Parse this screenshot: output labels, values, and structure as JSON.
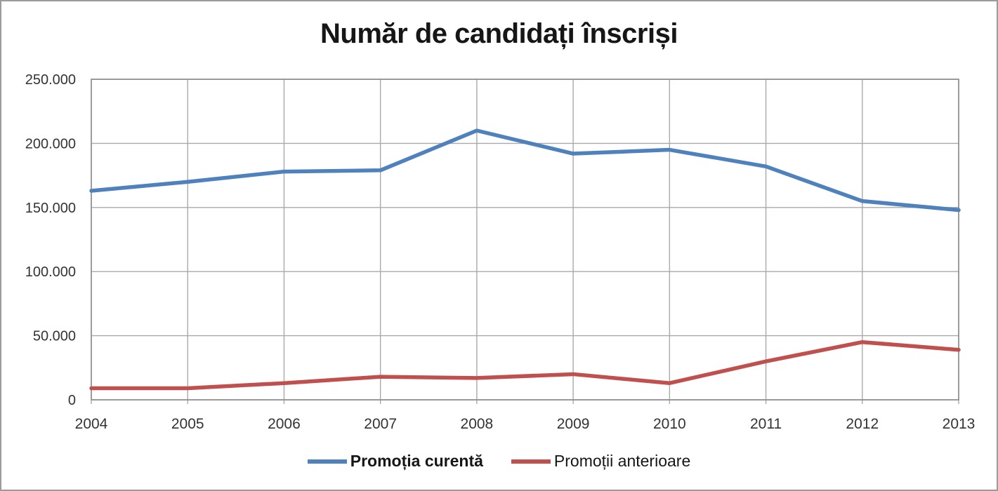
{
  "title": "Număr de candidați înscriși",
  "legend": {
    "items": [
      {
        "label": "Promoția curentă"
      },
      {
        "label": "Promoții anterioare"
      }
    ]
  },
  "chart_data": {
    "type": "line",
    "title": "Număr de candidați înscriși",
    "categories": [
      "2004",
      "2005",
      "2006",
      "2007",
      "2008",
      "2009",
      "2010",
      "2011",
      "2012",
      "2013"
    ],
    "series": [
      {
        "name": "Promoția curentă",
        "color": "#4F81BD",
        "values": [
          163000,
          170000,
          178000,
          179000,
          210000,
          192000,
          195000,
          182000,
          155000,
          148000
        ]
      },
      {
        "name": "Promoții anterioare",
        "color": "#C0504D",
        "values": [
          9000,
          9000,
          13000,
          18000,
          17000,
          20000,
          13000,
          30000,
          45000,
          39000
        ]
      }
    ],
    "xlabel": "",
    "ylabel": "",
    "ylim": [
      0,
      250000
    ],
    "ytick_interval": 50000,
    "ytick_labels": [
      "0",
      "50.000",
      "100.000",
      "150.000",
      "200.000",
      "250.000"
    ],
    "grid": true,
    "legend_position": "bottom",
    "colors": {
      "gridline": "#a9a9a9",
      "plot_border": "#8c8c8c",
      "tick_label": "#333333"
    }
  }
}
